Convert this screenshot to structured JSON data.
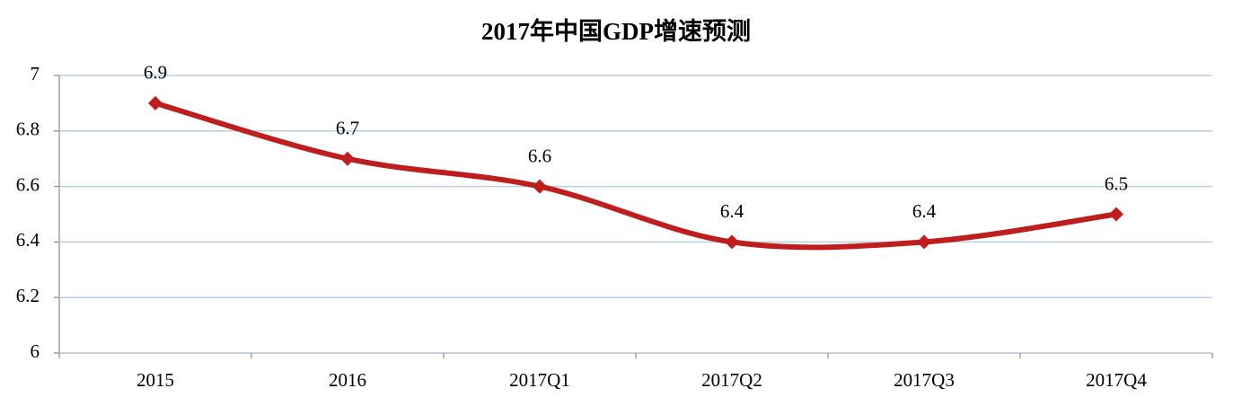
{
  "chart_data": {
    "type": "line",
    "title": "2017年中国GDP增速预测",
    "categories": [
      "2015",
      "2016",
      "2017Q1",
      "2017Q2",
      "2017Q3",
      "2017Q4"
    ],
    "values": [
      6.9,
      6.7,
      6.6,
      6.4,
      6.4,
      6.5
    ],
    "color": "#be1e1e",
    "ylim": [
      6,
      7
    ],
    "yticks": [
      6,
      6.2,
      6.4,
      6.6,
      6.8,
      7
    ],
    "grid": true,
    "smooth": true
  }
}
